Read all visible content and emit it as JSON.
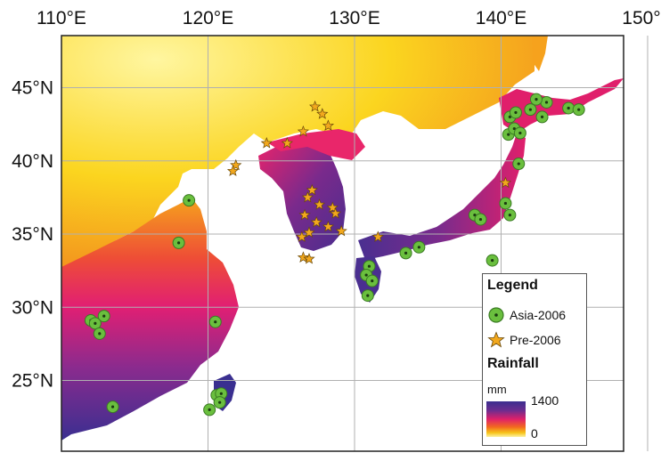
{
  "map": {
    "longitude_labels": [
      "110°E",
      "120°E",
      "130°E",
      "140°E",
      "150°E"
    ],
    "latitude_labels": [
      "45°N",
      "40°N",
      "35°N",
      "30°N",
      "25°N"
    ],
    "colors": {
      "rain_high": "#3b2f8f",
      "rain_mid": "#e0206a",
      "rain_low": "#fbf2a6",
      "asia_2006_marker": "#6abf3e",
      "pre_2006_marker": "#f2a81d",
      "sea": "#ffffff",
      "grid": "#b0b0b0"
    },
    "asia_2006_sites": [
      {
        "lon": 118.7,
        "lat": 37.3
      },
      {
        "lon": 118.0,
        "lat": 34.4
      },
      {
        "lon": 112.0,
        "lat": 29.1
      },
      {
        "lon": 112.3,
        "lat": 28.9
      },
      {
        "lon": 112.9,
        "lat": 29.4
      },
      {
        "lon": 112.6,
        "lat": 28.2
      },
      {
        "lon": 120.5,
        "lat": 29.0
      },
      {
        "lon": 113.5,
        "lat": 23.2
      },
      {
        "lon": 120.6,
        "lat": 24.0
      },
      {
        "lon": 120.9,
        "lat": 24.1
      },
      {
        "lon": 120.8,
        "lat": 23.5
      },
      {
        "lon": 120.1,
        "lat": 23.0
      },
      {
        "lon": 131.0,
        "lat": 32.8
      },
      {
        "lon": 130.8,
        "lat": 32.2
      },
      {
        "lon": 131.2,
        "lat": 31.8
      },
      {
        "lon": 130.9,
        "lat": 30.8
      },
      {
        "lon": 133.5,
        "lat": 33.7
      },
      {
        "lon": 134.4,
        "lat": 34.1
      },
      {
        "lon": 138.2,
        "lat": 36.3
      },
      {
        "lon": 138.6,
        "lat": 36.0
      },
      {
        "lon": 139.4,
        "lat": 33.2
      },
      {
        "lon": 140.3,
        "lat": 37.1
      },
      {
        "lon": 140.6,
        "lat": 36.3
      },
      {
        "lon": 141.2,
        "lat": 39.8
      },
      {
        "lon": 140.5,
        "lat": 41.8
      },
      {
        "lon": 140.9,
        "lat": 42.2
      },
      {
        "lon": 141.3,
        "lat": 41.9
      },
      {
        "lon": 140.6,
        "lat": 43.0
      },
      {
        "lon": 141.0,
        "lat": 43.3
      },
      {
        "lon": 142.0,
        "lat": 43.5
      },
      {
        "lon": 142.8,
        "lat": 43.0
      },
      {
        "lon": 143.1,
        "lat": 44.0
      },
      {
        "lon": 144.6,
        "lat": 43.6
      },
      {
        "lon": 145.3,
        "lat": 43.5
      },
      {
        "lon": 142.4,
        "lat": 44.2
      }
    ],
    "pre_2006_sites": [
      {
        "lon": 121.9,
        "lat": 39.7
      },
      {
        "lon": 121.7,
        "lat": 39.3
      },
      {
        "lon": 124.0,
        "lat": 41.2
      },
      {
        "lon": 125.4,
        "lat": 41.2
      },
      {
        "lon": 126.5,
        "lat": 42.0
      },
      {
        "lon": 127.3,
        "lat": 43.7
      },
      {
        "lon": 127.8,
        "lat": 43.2
      },
      {
        "lon": 128.2,
        "lat": 42.4
      },
      {
        "lon": 127.1,
        "lat": 38.0
      },
      {
        "lon": 126.8,
        "lat": 37.5
      },
      {
        "lon": 127.6,
        "lat": 37.0
      },
      {
        "lon": 128.5,
        "lat": 36.8
      },
      {
        "lon": 126.6,
        "lat": 36.3
      },
      {
        "lon": 127.4,
        "lat": 35.8
      },
      {
        "lon": 128.2,
        "lat": 35.5
      },
      {
        "lon": 126.9,
        "lat": 35.1
      },
      {
        "lon": 126.4,
        "lat": 34.8
      },
      {
        "lon": 128.7,
        "lat": 36.4
      },
      {
        "lon": 126.5,
        "lat": 33.4
      },
      {
        "lon": 126.9,
        "lat": 33.3
      },
      {
        "lon": 129.1,
        "lat": 35.2
      },
      {
        "lon": 131.6,
        "lat": 34.8
      },
      {
        "lon": 140.3,
        "lat": 38.5
      }
    ]
  },
  "legend": {
    "title": "Legend",
    "asia_label": "Asia-2006",
    "pre_label": "Pre-2006",
    "rainfall_title": "Rainfall",
    "unit": "mm",
    "max_value": "1400",
    "min_value": "0"
  }
}
